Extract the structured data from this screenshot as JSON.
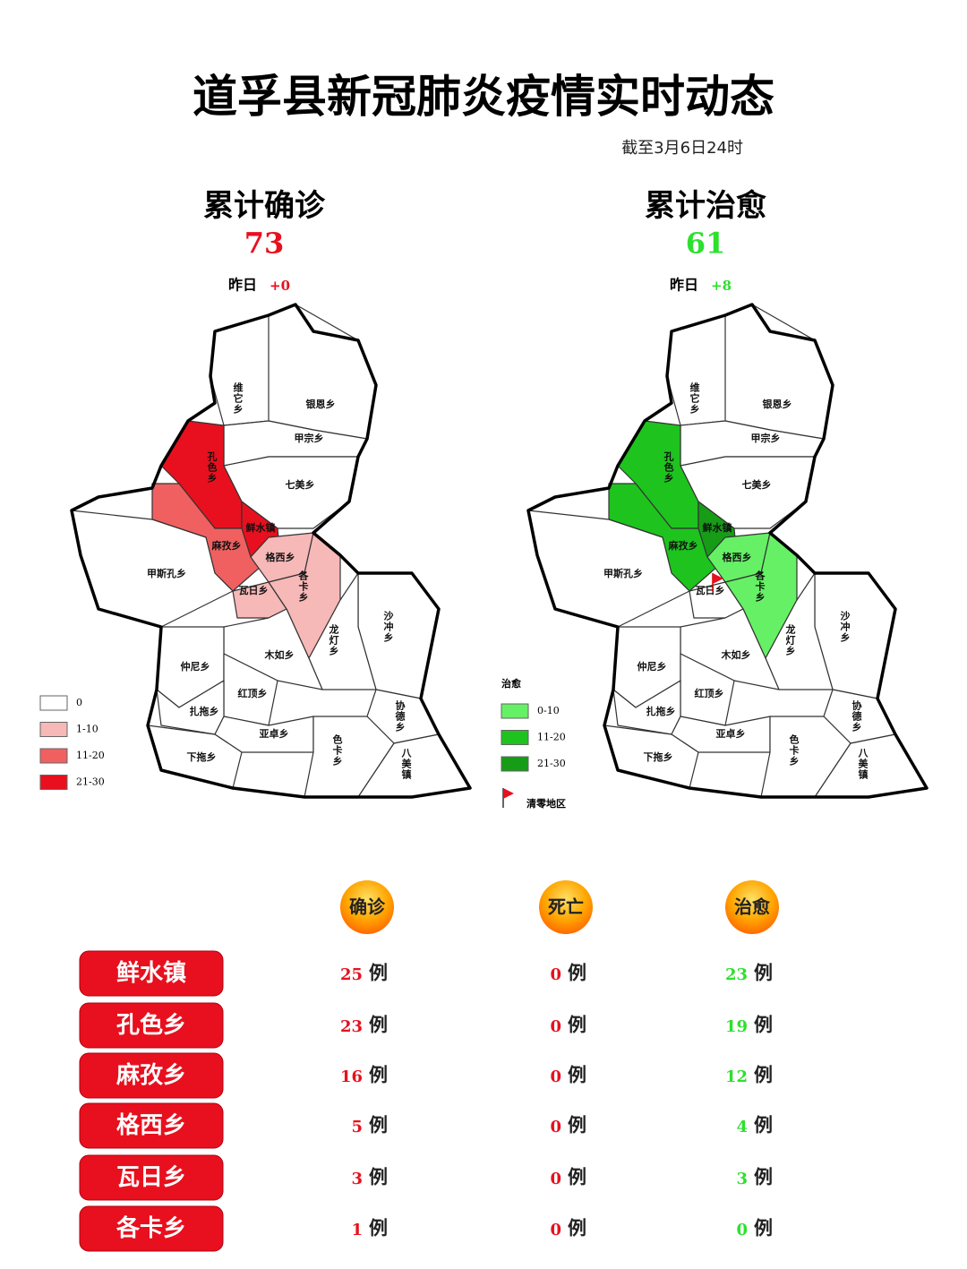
{
  "header": {
    "title": "道孚县新冠肺炎疫情实时动态",
    "date": "截至3月6日24时"
  },
  "summary": [
    {
      "label": "累计确诊",
      "value": 73,
      "yesterday_label": "昨日",
      "change": "+0",
      "color": "#e8101e"
    },
    {
      "label": "累计治愈",
      "value": 61,
      "yesterday_label": "昨日",
      "change": "+8",
      "color": "#2ee02e"
    }
  ],
  "maps": [
    {
      "regions": [
        {
          "name": "维它乡",
          "fill": "#ffffff"
        },
        {
          "name": "银恩乡",
          "fill": "#ffffff"
        },
        {
          "name": "甲宗乡",
          "fill": "#ffffff"
        },
        {
          "name": "孔色乡",
          "fill": "#e8101e"
        },
        {
          "name": "七美乡",
          "fill": "#ffffff"
        },
        {
          "name": "鲜水镇",
          "fill": "#e8101e"
        },
        {
          "name": "麻孜乡",
          "fill": "#f06060"
        },
        {
          "name": "格西乡",
          "fill": "#f7b8b8"
        },
        {
          "name": "甲斯孔乡",
          "fill": "#ffffff"
        },
        {
          "name": "瓦日乡",
          "fill": "#f7b8b8"
        },
        {
          "name": "各卡乡",
          "fill": "#f7b8b8"
        },
        {
          "name": "沙冲乡",
          "fill": "#ffffff"
        },
        {
          "name": "龙灯乡",
          "fill": "#ffffff"
        },
        {
          "name": "木如乡",
          "fill": "#ffffff"
        },
        {
          "name": "仲尼乡",
          "fill": "#ffffff"
        },
        {
          "name": "红顶乡",
          "fill": "#ffffff"
        },
        {
          "name": "扎拖乡",
          "fill": "#ffffff"
        },
        {
          "name": "亚卓乡",
          "fill": "#ffffff"
        },
        {
          "name": "协德乡",
          "fill": "#ffffff"
        },
        {
          "name": "下拖乡",
          "fill": "#ffffff"
        },
        {
          "name": "色卡乡",
          "fill": "#ffffff"
        },
        {
          "name": "八美镇",
          "fill": "#ffffff"
        }
      ],
      "legend": [
        {
          "label": "0",
          "color": "#ffffff"
        },
        {
          "label": "1-10",
          "color": "#f7b8b8"
        },
        {
          "label": "11-20",
          "color": "#f06060"
        },
        {
          "label": "21-30",
          "color": "#e8101e"
        }
      ]
    },
    {
      "legend_title": "治愈",
      "regions": [
        {
          "name": "维它乡",
          "fill": "#ffffff"
        },
        {
          "name": "银恩乡",
          "fill": "#ffffff"
        },
        {
          "name": "甲宗乡",
          "fill": "#ffffff"
        },
        {
          "name": "孔色乡",
          "fill": "#1ec31e"
        },
        {
          "name": "七美乡",
          "fill": "#ffffff"
        },
        {
          "name": "鲜水镇",
          "fill": "#179c17"
        },
        {
          "name": "麻孜乡",
          "fill": "#1ec31e"
        },
        {
          "name": "格西乡",
          "fill": "#66f066"
        },
        {
          "name": "甲斯孔乡",
          "fill": "#ffffff"
        },
        {
          "name": "瓦日乡",
          "fill": "#ffffff",
          "flag": true
        },
        {
          "name": "各卡乡",
          "fill": "#66f066"
        },
        {
          "name": "沙冲乡",
          "fill": "#ffffff"
        },
        {
          "name": "龙灯乡",
          "fill": "#ffffff"
        },
        {
          "name": "木如乡",
          "fill": "#ffffff"
        },
        {
          "name": "仲尼乡",
          "fill": "#ffffff"
        },
        {
          "name": "红顶乡",
          "fill": "#ffffff"
        },
        {
          "name": "扎拖乡",
          "fill": "#ffffff"
        },
        {
          "name": "亚卓乡",
          "fill": "#ffffff"
        },
        {
          "name": "协德乡",
          "fill": "#ffffff"
        },
        {
          "name": "下拖乡",
          "fill": "#ffffff"
        },
        {
          "name": "色卡乡",
          "fill": "#ffffff"
        },
        {
          "name": "八美镇",
          "fill": "#ffffff"
        }
      ],
      "legend": [
        {
          "label": "0-10",
          "color": "#66f066"
        },
        {
          "label": "11-20",
          "color": "#1ec31e"
        },
        {
          "label": "21-30",
          "color": "#179c17"
        }
      ],
      "flag_label": "清零地区"
    }
  ],
  "table": {
    "columns": [
      {
        "name": "确诊",
        "color": "#e8101e"
      },
      {
        "name": "死亡",
        "color": "#e8101e"
      },
      {
        "name": "治愈",
        "color": "#2ee02e"
      }
    ],
    "unit": "例",
    "rows": [
      {
        "name": "鲜水镇",
        "values": [
          25,
          0,
          23
        ]
      },
      {
        "name": "孔色乡",
        "values": [
          23,
          0,
          19
        ]
      },
      {
        "name": "麻孜乡",
        "values": [
          16,
          0,
          12
        ]
      },
      {
        "name": "格西乡",
        "values": [
          5,
          0,
          4
        ]
      },
      {
        "name": "瓦日乡",
        "values": [
          3,
          0,
          3
        ]
      },
      {
        "name": "各卡乡",
        "values": [
          1,
          0,
          0
        ]
      }
    ]
  }
}
